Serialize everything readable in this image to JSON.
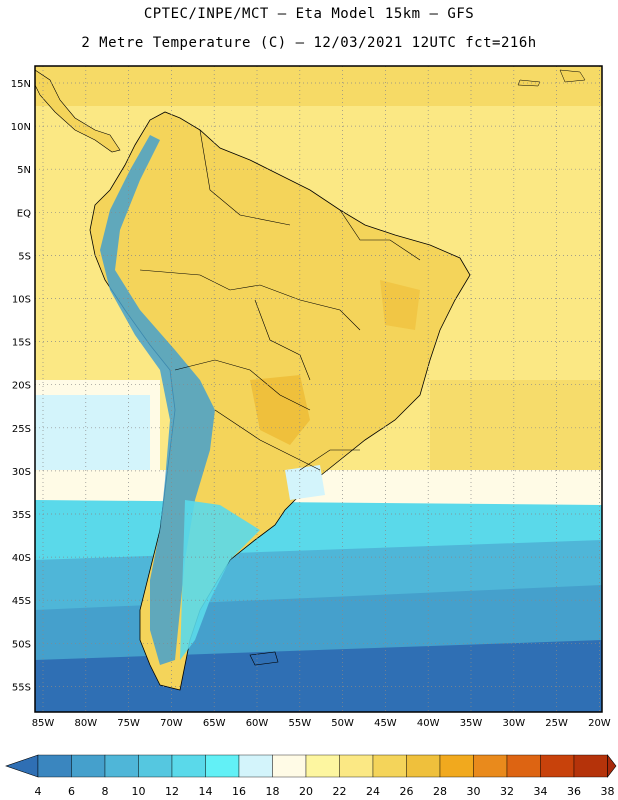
{
  "header": {
    "line1": "CPTEC/INPE/MCT –  Eta Model 15km – GFS",
    "line2": "2 Metre Temperature (C) – 12/03/2021 12UTC fct=216h"
  },
  "axes": {
    "lat_labels": [
      "15N",
      "10N",
      "5N",
      "EQ",
      "5S",
      "10S",
      "15S",
      "20S",
      "25S",
      "30S",
      "35S",
      "40S",
      "45S",
      "50S",
      "55S"
    ],
    "lon_labels": [
      "85W",
      "80W",
      "75W",
      "70W",
      "65W",
      "60W",
      "55W",
      "50W",
      "45W",
      "40W",
      "35W",
      "30W",
      "25W",
      "20W"
    ]
  },
  "colorbar": {
    "labels": [
      "4",
      "6",
      "8",
      "10",
      "12",
      "14",
      "16",
      "18",
      "20",
      "22",
      "24",
      "26",
      "28",
      "30",
      "32",
      "34",
      "36",
      "38"
    ],
    "colors": [
      "#2f6fb4",
      "#3a86bf",
      "#45a0cc",
      "#4fb6d8",
      "#55c7e0",
      "#5ad9ea",
      "#62f0f6",
      "#d3f4fb",
      "#fffbe6",
      "#fdf6a0",
      "#fbe884",
      "#f4d45a",
      "#efc03c",
      "#f1a91e",
      "#e98a1c",
      "#dd6412",
      "#c8420b",
      "#b5330a",
      "#a8290a"
    ]
  },
  "map_colors": {
    "ocean_n": "#fbe884",
    "land": "#f4d45a",
    "hot": "#efc03c",
    "andes": "#4fb6d8",
    "ocean_s1": "#5ad9ea",
    "ocean_s2": "#45a0cc",
    "ocean_s3": "#2f6fb4"
  }
}
